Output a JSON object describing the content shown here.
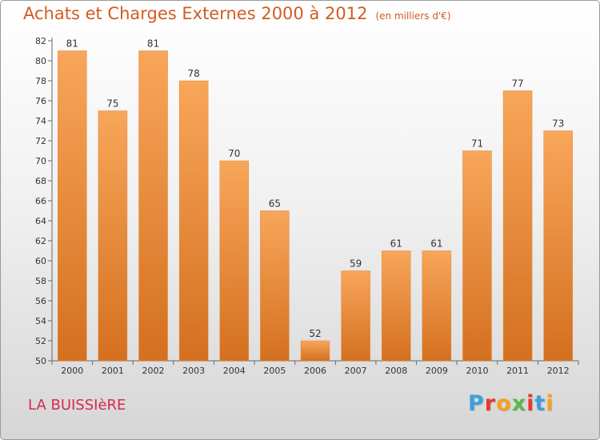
{
  "header": {
    "title": "Achats et Charges Externes 2000 à 2012",
    "subtitle": "(en milliers d'€)"
  },
  "footer": {
    "place": "LA BUISSIèRE",
    "logo": "Proxiti"
  },
  "colors": {
    "title": "#d05c22",
    "bar_top": "#f8a65a",
    "bar_bottom": "#d4701f",
    "place": "#d6294f",
    "logo": [
      "#3aa0dd",
      "#e43a2f",
      "#f3a11e",
      "#58b947",
      "#e43a2f",
      "#3aa0dd",
      "#f3a11e"
    ]
  },
  "chart_data": {
    "type": "bar",
    "title": "Achats et Charges Externes 2000 à 2012",
    "subtitle": "(en milliers d'€)",
    "categories": [
      "2000",
      "2001",
      "2002",
      "2003",
      "2004",
      "2005",
      "2006",
      "2007",
      "2008",
      "2009",
      "2010",
      "2011",
      "2012"
    ],
    "values": [
      81,
      75,
      81,
      78,
      70,
      65,
      52,
      59,
      61,
      61,
      71,
      77,
      73
    ],
    "data_labels": [
      "81",
      "75",
      "81",
      "78",
      "70",
      "65",
      "52",
      "59",
      "61",
      "61",
      "71",
      "77",
      "73"
    ],
    "ylim": [
      50,
      82
    ],
    "yticks": [
      50,
      52,
      54,
      56,
      58,
      60,
      62,
      64,
      66,
      68,
      70,
      72,
      74,
      76,
      78,
      80,
      82
    ],
    "xlabel": "",
    "ylabel": "",
    "grid": false,
    "legend": "none"
  }
}
